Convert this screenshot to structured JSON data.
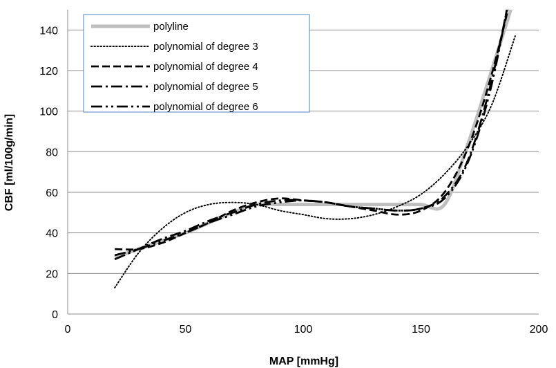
{
  "chart_data": {
    "type": "line",
    "xlabel": "MAP [mmHg]",
    "ylabel": "CBF [ml/100g/min]",
    "xlim": [
      0,
      200
    ],
    "ylim": [
      0,
      150
    ],
    "x_ticks": [
      0,
      50,
      100,
      150,
      200
    ],
    "y_ticks": [
      0,
      20,
      40,
      60,
      80,
      100,
      120,
      140
    ],
    "grid": "horizontal",
    "legend_position": "top-left",
    "series": [
      {
        "name": "polyline",
        "color": "#bfbfbf",
        "style": "solid",
        "x": [
          20,
          30,
          40,
          50,
          60,
          70,
          80,
          90,
          100,
          110,
          120,
          130,
          140,
          150,
          160,
          170,
          180,
          190
        ],
        "y": [
          28,
          32,
          36,
          40,
          45,
          50,
          54,
          54,
          54,
          54,
          54,
          54,
          54,
          54,
          54,
          84,
          120,
          157
        ]
      },
      {
        "name": "polynomial of degree 3",
        "color": "#000000",
        "style": "dotted",
        "x": [
          20,
          30,
          40,
          50,
          60,
          70,
          80,
          90,
          100,
          110,
          120,
          130,
          140,
          150,
          160,
          170,
          180,
          190
        ],
        "y": [
          13,
          30,
          42,
          50,
          54,
          55,
          54,
          51,
          49,
          47,
          47,
          49,
          53,
          59,
          69,
          83,
          103,
          137
        ]
      },
      {
        "name": "polynomial of degree 4",
        "color": "#000000",
        "style": "dashed",
        "x": [
          20,
          30,
          40,
          50,
          60,
          70,
          80,
          90,
          100,
          110,
          120,
          130,
          140,
          150,
          160,
          170,
          180,
          190
        ],
        "y": [
          32,
          32,
          35,
          40,
          45,
          51,
          55,
          57,
          56,
          55,
          53,
          51,
          49,
          51,
          60,
          82,
          118,
          165
        ]
      },
      {
        "name": "polynomial of degree 5",
        "color": "#000000",
        "style": "dash-dot",
        "x": [
          20,
          30,
          40,
          50,
          60,
          70,
          80,
          90,
          100,
          110,
          120,
          130,
          140,
          150,
          160,
          170,
          180,
          190
        ],
        "y": [
          27,
          32,
          37,
          41,
          46,
          50,
          54,
          56,
          56,
          55,
          53,
          52,
          51,
          52,
          58,
          76,
          115,
          170
        ]
      },
      {
        "name": "polynomial of degree 6",
        "color": "#000000",
        "style": "dash-dot-dot",
        "x": [
          20,
          30,
          40,
          50,
          60,
          70,
          80,
          90,
          100,
          110,
          120,
          130,
          140,
          150,
          160,
          170,
          180,
          190
        ],
        "y": [
          29,
          32,
          36,
          40,
          45,
          49,
          53,
          55,
          56,
          55,
          53,
          52,
          51,
          52,
          57,
          75,
          113,
          172
        ]
      }
    ]
  }
}
